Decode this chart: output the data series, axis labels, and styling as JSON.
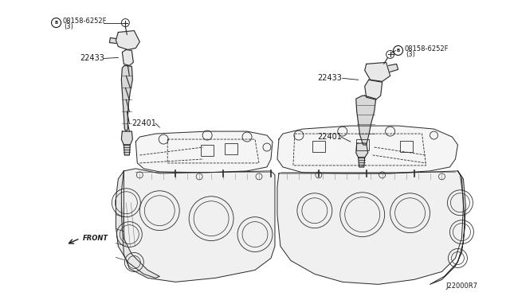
{
  "bg_color": "#ffffff",
  "line_color": "#2a2a2a",
  "label_color": "#1a1a1a",
  "fig_width": 6.4,
  "fig_height": 3.72,
  "dpi": 100,
  "labels": {
    "bolt_left": "®08158-6252F\n(3)",
    "bolt_right": "®08158-6252F\n(3)",
    "coil_left": "22433",
    "coil_right": "22433",
    "spark_left": "22401",
    "spark_right": "22401",
    "front": "← FRONT",
    "diagram_id": "J22000R7"
  }
}
